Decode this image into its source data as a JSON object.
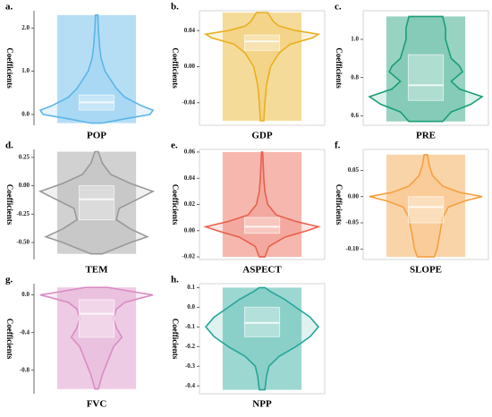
{
  "chart_data": [
    {
      "type": "violin",
      "label": "a.",
      "y_label": "Coefficients",
      "x_label": "POP",
      "color": "#5bb5e8",
      "frame": false,
      "ylim": [
        -0.25,
        2.4
      ],
      "yticks": [
        {
          "value": 0,
          "label": "0.0"
        },
        {
          "value": 1,
          "label": "1.0"
        },
        {
          "value": 2,
          "label": "2.0"
        }
      ],
      "box": {
        "min": -0.2,
        "q1": 0.1,
        "median": 0.28,
        "q3": 0.45,
        "max": 2.3
      },
      "density_y": [
        -0.2,
        -0.1,
        0,
        0.1,
        0.2,
        0.4,
        0.6,
        0.8,
        1.0,
        1.3,
        1.6,
        2.0,
        2.3
      ],
      "density": [
        0.1,
        0.5,
        0.95,
        1,
        0.8,
        0.5,
        0.35,
        0.25,
        0.15,
        0.08,
        0.05,
        0.03,
        0.02
      ]
    },
    {
      "type": "violin",
      "label": "b.",
      "y_label": "Coefficients",
      "x_label": "GDP",
      "color": "#e8b020",
      "frame": true,
      "ylim": [
        -0.065,
        0.062
      ],
      "yticks": [
        {
          "value": 0.04,
          "label": "0.04"
        },
        {
          "value": 0,
          "label": "0.00"
        },
        {
          "value": -0.04,
          "label": "-0.04"
        }
      ],
      "box": {
        "min": -0.06,
        "q1": 0.018,
        "median": 0.028,
        "q3": 0.035,
        "max": 0.06
      },
      "density_y": [
        -0.06,
        -0.04,
        -0.02,
        0,
        0.015,
        0.025,
        0.032,
        0.036,
        0.04,
        0.045,
        0.05,
        0.06
      ],
      "density": [
        0.03,
        0.05,
        0.08,
        0.15,
        0.3,
        0.5,
        0.9,
        1,
        0.6,
        0.3,
        0.2,
        0.1
      ]
    },
    {
      "type": "violin",
      "label": "c.",
      "y_label": "Coefficients",
      "x_label": "PRE",
      "color": "#1a9e77",
      "frame": true,
      "ylim": [
        0.55,
        1.15
      ],
      "yticks": [
        {
          "value": 0.6,
          "label": "0.6"
        },
        {
          "value": 0.8,
          "label": "0.8"
        },
        {
          "value": 1.0,
          "label": "1.0"
        }
      ],
      "box": {
        "min": 0.57,
        "q1": 0.68,
        "median": 0.76,
        "q3": 0.92,
        "max": 1.12
      },
      "density_y": [
        0.57,
        0.62,
        0.66,
        0.7,
        0.74,
        0.78,
        0.83,
        0.86,
        0.9,
        0.95,
        1.0,
        1.06,
        1.12
      ],
      "density": [
        0.3,
        0.45,
        0.8,
        1,
        0.6,
        0.45,
        0.65,
        0.6,
        0.45,
        0.4,
        0.35,
        0.35,
        0.3
      ]
    },
    {
      "type": "violin",
      "label": "d.",
      "y_label": "Coefficients",
      "x_label": "TEM",
      "color": "#999999",
      "frame": false,
      "ylim": [
        -0.65,
        0.32
      ],
      "yticks": [
        0.25,
        {
          "value": 0,
          "label": "0.00"
        },
        {
          "value": -0.25,
          "label": "-0.25"
        },
        {
          "value": -0.5,
          "label": "-0.50"
        }
      ],
      "box": {
        "min": -0.6,
        "q1": -0.3,
        "median": -0.12,
        "q3": 0.0,
        "max": 0.3
      },
      "density_y": [
        -0.6,
        -0.5,
        -0.45,
        -0.38,
        -0.3,
        -0.2,
        -0.1,
        -0.05,
        0.02,
        0.1,
        0.2,
        0.3
      ],
      "density": [
        0.1,
        0.6,
        0.9,
        0.6,
        0.35,
        0.4,
        0.8,
        1,
        0.6,
        0.25,
        0.1,
        0.03
      ]
    },
    {
      "type": "violin",
      "label": "e.",
      "y_label": "Coefficients",
      "x_label": "ASPECT",
      "color": "#e8604c",
      "frame": true,
      "ylim": [
        -0.022,
        0.062
      ],
      "yticks": [
        {
          "value": 0.06,
          "label": "0.06"
        },
        {
          "value": 0.04,
          "label": "0.04"
        },
        {
          "value": 0.02,
          "label": "0.02"
        },
        {
          "value": 0,
          "label": "0.00"
        },
        {
          "value": -0.02,
          "label": "-0.02"
        }
      ],
      "box": {
        "min": -0.02,
        "q1": -0.002,
        "median": 0.003,
        "q3": 0.01,
        "max": 0.06
      },
      "density_y": [
        -0.02,
        -0.012,
        -0.005,
        0,
        0.003,
        0.007,
        0.012,
        0.02,
        0.03,
        0.04,
        0.05,
        0.06
      ],
      "density": [
        0.05,
        0.12,
        0.4,
        0.8,
        1,
        0.6,
        0.25,
        0.1,
        0.05,
        0.03,
        0.02,
        0.01
      ]
    },
    {
      "type": "violin",
      "label": "f.",
      "y_label": "Coefficients",
      "x_label": "SLOPE",
      "color": "#f5a040",
      "frame": true,
      "ylim": [
        -0.12,
        0.09
      ],
      "yticks": [
        {
          "value": 0.05,
          "label": "0.05"
        },
        {
          "value": 0,
          "label": "0.00"
        },
        {
          "value": -0.05,
          "label": "-0.05"
        },
        {
          "value": -0.1,
          "label": "-0.10"
        }
      ],
      "box": {
        "min": -0.115,
        "q1": -0.05,
        "median": -0.02,
        "q3": 0.0,
        "max": 0.08
      },
      "density_y": [
        -0.115,
        -0.1,
        -0.07,
        -0.04,
        -0.02,
        -0.008,
        0,
        0.008,
        0.02,
        0.04,
        0.06,
        0.08
      ],
      "density": [
        0.15,
        0.2,
        0.25,
        0.3,
        0.4,
        0.7,
        1,
        0.6,
        0.3,
        0.12,
        0.06,
        0.03
      ]
    },
    {
      "type": "violin",
      "label": "g.",
      "y_label": "Coefficients",
      "x_label": "FVC",
      "color": "#d98cc4",
      "frame": false,
      "ylim": [
        -1.05,
        0.12
      ],
      "yticks": [
        {
          "value": 0,
          "label": "0.0"
        },
        {
          "value": -0.4,
          "label": "-0.4"
        },
        {
          "value": -0.8,
          "label": "-0.8"
        }
      ],
      "box": {
        "min": -1.0,
        "q1": -0.45,
        "median": -0.2,
        "q3": -0.05,
        "max": 0.08
      },
      "density_y": [
        -1.0,
        -0.85,
        -0.7,
        -0.55,
        -0.45,
        -0.35,
        -0.25,
        -0.15,
        -0.08,
        -0.03,
        0.0,
        0.03,
        0.08
      ],
      "density": [
        0.03,
        0.1,
        0.2,
        0.3,
        0.45,
        0.35,
        0.3,
        0.35,
        0.5,
        0.8,
        1,
        0.7,
        0.2
      ]
    },
    {
      "type": "violin",
      "label": "h.",
      "y_label": "Coefficients",
      "x_label": "NPP",
      "color": "#26a69a",
      "frame": true,
      "ylim": [
        -0.44,
        0.12
      ],
      "yticks": [
        0.1,
        {
          "value": 0,
          "label": "0.0"
        },
        -0.1,
        -0.2,
        -0.3,
        -0.4
      ],
      "box": {
        "min": -0.42,
        "q1": -0.15,
        "median": -0.08,
        "q3": 0.0,
        "max": 0.1
      },
      "density_y": [
        -0.42,
        -0.35,
        -0.3,
        -0.25,
        -0.2,
        -0.15,
        -0.1,
        -0.05,
        0.0,
        0.04,
        0.08,
        0.1
      ],
      "density": [
        0.05,
        0.08,
        0.12,
        0.3,
        0.6,
        0.85,
        1,
        0.85,
        0.6,
        0.4,
        0.15,
        0.05
      ]
    }
  ]
}
